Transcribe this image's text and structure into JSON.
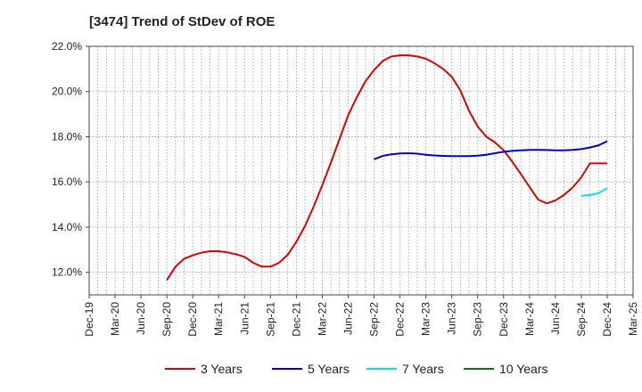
{
  "chart_data": {
    "type": "line",
    "title": "[3474]  Trend of StDev of ROE",
    "xlabel": "",
    "ylabel": "",
    "x_tick_labels": [
      "Dec-19",
      "Mar-20",
      "Jun-20",
      "Sep-20",
      "Dec-20",
      "Mar-21",
      "Jun-21",
      "Sep-21",
      "Dec-21",
      "Mar-22",
      "Jun-22",
      "Sep-22",
      "Dec-22",
      "Mar-23",
      "Jun-23",
      "Sep-23",
      "Dec-23",
      "Mar-24",
      "Jun-24",
      "Sep-24",
      "Dec-24",
      "Mar-25"
    ],
    "y_ticks": [
      12.0,
      14.0,
      16.0,
      18.0,
      20.0,
      22.0
    ],
    "y_tick_labels": [
      "12.0%",
      "14.0%",
      "16.0%",
      "18.0%",
      "20.0%",
      "22.0%"
    ],
    "ylim": [
      11.0,
      22.0
    ],
    "grid": true,
    "legend_position": "bottom",
    "series": [
      {
        "name": "3 Years",
        "color": "#dd0000",
        "x": [
          "Sep-20",
          "Oct-20",
          "Nov-20",
          "Dec-20",
          "Jan-21",
          "Feb-21",
          "Mar-21",
          "Apr-21",
          "May-21",
          "Jun-21",
          "Jul-21",
          "Aug-21",
          "Sep-21",
          "Oct-21",
          "Nov-21",
          "Dec-21",
          "Jan-22",
          "Feb-22",
          "Mar-22",
          "Apr-22",
          "May-22",
          "Jun-22",
          "Jul-22",
          "Aug-22",
          "Sep-22",
          "Oct-22",
          "Nov-22",
          "Dec-22",
          "Jan-23",
          "Feb-23",
          "Mar-23",
          "Apr-23",
          "May-23",
          "Jun-23",
          "Jul-23",
          "Aug-23",
          "Sep-23",
          "Oct-23",
          "Nov-23",
          "Dec-23",
          "Jan-24",
          "Feb-24",
          "Mar-24",
          "Apr-24",
          "May-24",
          "Jun-24",
          "Jul-24",
          "Aug-24",
          "Sep-24",
          "Oct-24",
          "Nov-24",
          "Dec-24"
        ],
        "values": [
          11.65,
          12.25,
          12.6,
          12.75,
          12.87,
          12.93,
          12.93,
          12.88,
          12.8,
          12.68,
          12.42,
          12.25,
          12.25,
          12.42,
          12.78,
          13.35,
          14.05,
          14.9,
          15.85,
          16.85,
          17.9,
          18.95,
          19.75,
          20.45,
          20.95,
          21.35,
          21.55,
          21.6,
          21.6,
          21.55,
          21.45,
          21.25,
          21.0,
          20.65,
          20.05,
          19.15,
          18.45,
          18.0,
          17.75,
          17.4,
          16.9,
          16.35,
          15.78,
          15.22,
          15.05,
          15.18,
          15.42,
          15.75,
          16.2,
          16.82,
          16.82,
          16.82
        ],
        "values_note": ""
      },
      {
        "name": "5 Years",
        "color": "#0000cc",
        "x": [
          "Sep-22",
          "Oct-22",
          "Nov-22",
          "Dec-22",
          "Jan-23",
          "Feb-23",
          "Mar-23",
          "Apr-23",
          "May-23",
          "Jun-23",
          "Jul-23",
          "Aug-23",
          "Sep-23",
          "Oct-23",
          "Nov-23",
          "Dec-23",
          "Jan-24",
          "Feb-24",
          "Mar-24",
          "Apr-24",
          "May-24",
          "Jun-24",
          "Jul-24",
          "Aug-24",
          "Sep-24",
          "Oct-24",
          "Nov-24",
          "Dec-24"
        ],
        "values": [
          17.0,
          17.15,
          17.22,
          17.26,
          17.27,
          17.25,
          17.2,
          17.17,
          17.15,
          17.14,
          17.14,
          17.14,
          17.16,
          17.2,
          17.27,
          17.33,
          17.37,
          17.4,
          17.42,
          17.42,
          17.41,
          17.4,
          17.4,
          17.42,
          17.45,
          17.52,
          17.62,
          17.8
        ]
      },
      {
        "name": "7 Years",
        "color": "#00e5e5",
        "x": [
          "Sep-24",
          "Oct-24",
          "Nov-24",
          "Dec-24"
        ],
        "values": [
          15.38,
          15.42,
          15.5,
          15.72
        ]
      },
      {
        "name": "10 Years",
        "color": "#008000",
        "x": [],
        "values": []
      }
    ]
  }
}
